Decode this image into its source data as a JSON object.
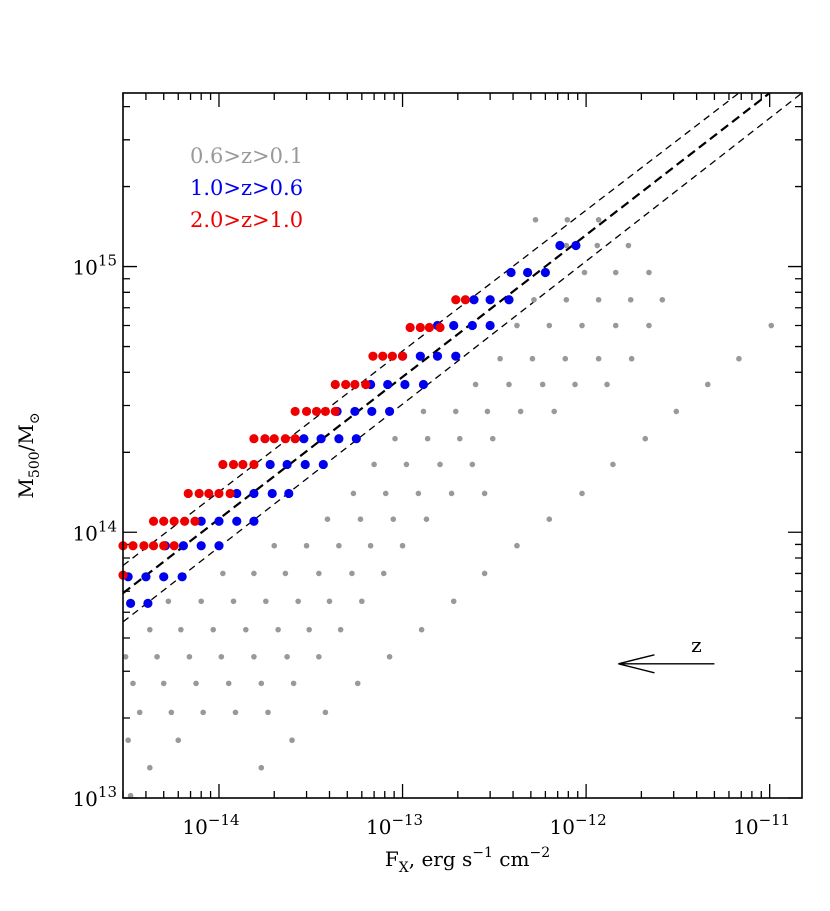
{
  "chart_data": {
    "type": "scatter",
    "x_scale": "log",
    "y_scale": "log",
    "xlim": [
      3e-15,
      1.5e-11
    ],
    "ylim": [
      10000000000000.0,
      4500000000000000.0
    ],
    "xlabel": {
      "base": "F",
      "sub": "X",
      "rest": ", erg s",
      "exp1": "−1",
      "mid": " cm",
      "exp2": "−2"
    },
    "ylabel": {
      "base1": "M",
      "sub1": "500",
      "slash": "/M",
      "sub2": "⊙"
    },
    "x_ticks": [
      {
        "value": 1e-14,
        "base": "10",
        "exp": "−14"
      },
      {
        "value": 1e-13,
        "base": "10",
        "exp": "−13"
      },
      {
        "value": 1e-12,
        "base": "10",
        "exp": "−12"
      },
      {
        "value": 1e-11,
        "base": "10",
        "exp": "−11"
      }
    ],
    "y_ticks": [
      {
        "value": 10000000000000.0,
        "base": "10",
        "exp": "13"
      },
      {
        "value": 100000000000000.0,
        "base": "10",
        "exp": "14"
      },
      {
        "value": 1000000000000000.0,
        "base": "10",
        "exp": "15"
      }
    ],
    "legend": [
      {
        "label": "0.6>z>0.1",
        "color": "#999999"
      },
      {
        "label": "1.0>z>0.6",
        "color": "#0000ee"
      },
      {
        "label": "2.0>z>1.0",
        "color": "#ee0000"
      }
    ],
    "legend_placement": "top-left",
    "annotation": {
      "label": "z",
      "arrow_from_x": 5e-12,
      "arrow_to_x": 1.5e-12,
      "arrow_y": 32000000000000.0
    },
    "lines": [
      {
        "style": "dashed",
        "points": [
          [
            3e-15,
            75000000000000.0
          ],
          [
            6.8e-12,
            4500000000000000.0
          ]
        ]
      },
      {
        "style": "dashed-bold",
        "points": [
          [
            3e-15,
            59000000000000.0
          ],
          [
            1e-11,
            4500000000000000.0
          ]
        ]
      },
      {
        "style": "dashed",
        "points": [
          [
            3e-15,
            46000000000000.0
          ],
          [
            1.5e-11,
            4500000000000000.0
          ]
        ]
      }
    ],
    "series": [
      {
        "name": "0.6>z>0.1",
        "color": "#999999",
        "marker_size": "small",
        "points": [
          [
            1.17e-12,
            1500000000000000.0
          ],
          [
            7.9e-13,
            1500000000000000.0
          ],
          [
            5.3e-13,
            1500000000000000.0
          ],
          [
            1.7e-12,
            1200000000000000.0
          ],
          [
            1.15e-12,
            1200000000000000.0
          ],
          [
            7.8e-13,
            1200000000000000.0
          ],
          [
            2.2e-12,
            950000000000000.0
          ],
          [
            1.45e-12,
            950000000000000.0
          ],
          [
            9.8e-13,
            950000000000000.0
          ],
          [
            2.6e-12,
            750000000000000.0
          ],
          [
            1.75e-12,
            750000000000000.0
          ],
          [
            1.17e-12,
            750000000000000.0
          ],
          [
            7.8e-13,
            750000000000000.0
          ],
          [
            5.2e-13,
            750000000000000.0
          ],
          [
            1.02e-11,
            600000000000000.0
          ],
          [
            2.2e-12,
            600000000000000.0
          ],
          [
            1.45e-12,
            600000000000000.0
          ],
          [
            9.5e-13,
            600000000000000.0
          ],
          [
            6.3e-13,
            600000000000000.0
          ],
          [
            4.2e-13,
            600000000000000.0
          ],
          [
            6.8e-12,
            450000000000000.0
          ],
          [
            1.77e-12,
            450000000000000.0
          ],
          [
            1.17e-12,
            450000000000000.0
          ],
          [
            7.7e-13,
            450000000000000.0
          ],
          [
            5.1e-13,
            450000000000000.0
          ],
          [
            3.4e-13,
            450000000000000.0
          ],
          [
            4.6e-12,
            360000000000000.0
          ],
          [
            1.3e-12,
            360000000000000.0
          ],
          [
            8.7e-13,
            360000000000000.0
          ],
          [
            5.8e-13,
            360000000000000.0
          ],
          [
            3.8e-13,
            360000000000000.0
          ],
          [
            2.5e-13,
            360000000000000.0
          ],
          [
            3.1e-12,
            285000000000000.0
          ],
          [
            6.7e-13,
            285000000000000.0
          ],
          [
            4.4e-13,
            285000000000000.0
          ],
          [
            2.9e-13,
            285000000000000.0
          ],
          [
            1.95e-13,
            285000000000000.0
          ],
          [
            1.3e-13,
            285000000000000.0
          ],
          [
            2.1e-12,
            225000000000000.0
          ],
          [
            3.1e-13,
            225000000000000.0
          ],
          [
            2.05e-13,
            225000000000000.0
          ],
          [
            1.37e-13,
            225000000000000.0
          ],
          [
            9.1e-14,
            225000000000000.0
          ],
          [
            1.4e-12,
            180000000000000.0
          ],
          [
            2.4e-13,
            180000000000000.0
          ],
          [
            1.6e-13,
            180000000000000.0
          ],
          [
            1.05e-13,
            180000000000000.0
          ],
          [
            7e-14,
            180000000000000.0
          ],
          [
            9.5e-13,
            140000000000000.0
          ],
          [
            2.8e-13,
            140000000000000.0
          ],
          [
            1.85e-13,
            140000000000000.0
          ],
          [
            1.22e-13,
            140000000000000.0
          ],
          [
            8.1e-14,
            140000000000000.0
          ],
          [
            5.4e-14,
            140000000000000.0
          ],
          [
            6.3e-13,
            112000000000000.0
          ],
          [
            1.35e-13,
            112000000000000.0
          ],
          [
            8.9e-14,
            112000000000000.0
          ],
          [
            5.9e-14,
            112000000000000.0
          ],
          [
            3.9e-14,
            112000000000000.0
          ],
          [
            4.2e-13,
            89000000000000.0
          ],
          [
            1e-13,
            89000000000000.0
          ],
          [
            6.7e-14,
            89000000000000.0
          ],
          [
            4.5e-14,
            89000000000000.0
          ],
          [
            3e-14,
            89000000000000.0
          ],
          [
            2e-14,
            89000000000000.0
          ],
          [
            2.8e-13,
            70000000000000.0
          ],
          [
            7.9e-14,
            70000000000000.0
          ],
          [
            5.3e-14,
            70000000000000.0
          ],
          [
            3.5e-14,
            70000000000000.0
          ],
          [
            2.3e-14,
            70000000000000.0
          ],
          [
            1.55e-14,
            70000000000000.0
          ],
          [
            1.05e-14,
            70000000000000.0
          ],
          [
            1.9e-13,
            55000000000000.0
          ],
          [
            6e-14,
            55000000000000.0
          ],
          [
            4e-14,
            55000000000000.0
          ],
          [
            2.7e-14,
            55000000000000.0
          ],
          [
            1.8e-14,
            55000000000000.0
          ],
          [
            1.2e-14,
            55000000000000.0
          ],
          [
            8e-15,
            55000000000000.0
          ],
          [
            5.3e-15,
            55000000000000.0
          ],
          [
            1.27e-13,
            43000000000000.0
          ],
          [
            4.6e-14,
            43000000000000.0
          ],
          [
            3.1e-14,
            43000000000000.0
          ],
          [
            2.1e-14,
            43000000000000.0
          ],
          [
            1.4e-14,
            43000000000000.0
          ],
          [
            9.3e-15,
            43000000000000.0
          ],
          [
            6.2e-15,
            43000000000000.0
          ],
          [
            4.2e-15,
            43000000000000.0
          ],
          [
            8.5e-14,
            34000000000000.0
          ],
          [
            3.5e-14,
            34000000000000.0
          ],
          [
            2.35e-14,
            34000000000000.0
          ],
          [
            1.55e-14,
            34000000000000.0
          ],
          [
            1.03e-14,
            34000000000000.0
          ],
          [
            6.9e-15,
            34000000000000.0
          ],
          [
            4.6e-15,
            34000000000000.0
          ],
          [
            3.1e-15,
            34000000000000.0
          ],
          [
            5.7e-14,
            27000000000000.0
          ],
          [
            2.55e-14,
            27000000000000.0
          ],
          [
            1.7e-14,
            27000000000000.0
          ],
          [
            1.13e-14,
            27000000000000.0
          ],
          [
            7.5e-15,
            27000000000000.0
          ],
          [
            5e-15,
            27000000000000.0
          ],
          [
            3.4e-15,
            27000000000000.0
          ],
          [
            3.8e-14,
            21000000000000.0
          ],
          [
            1.85e-14,
            21000000000000.0
          ],
          [
            1.23e-14,
            21000000000000.0
          ],
          [
            8.2e-15,
            21000000000000.0
          ],
          [
            5.5e-15,
            21000000000000.0
          ],
          [
            3.7e-15,
            21000000000000.0
          ],
          [
            2.5e-14,
            16500000000000.0
          ],
          [
            6e-15,
            16500000000000.0
          ],
          [
            3.2e-15,
            16500000000000.0
          ],
          [
            1.7e-14,
            13000000000000.0
          ],
          [
            4.2e-15,
            13000000000000.0
          ],
          [
            3.3e-15,
            10200000000000.0
          ]
        ]
      },
      {
        "name": "1.0>z>0.6",
        "color": "#0000ee",
        "marker_size": "large",
        "points": [
          [
            7.2e-13,
            1200000000000000.0
          ],
          [
            8.8e-13,
            1200000000000000.0
          ],
          [
            3.9e-13,
            950000000000000.0
          ],
          [
            4.8e-13,
            950000000000000.0
          ],
          [
            6e-13,
            950000000000000.0
          ],
          [
            2.45e-13,
            750000000000000.0
          ],
          [
            3e-13,
            750000000000000.0
          ],
          [
            3.8e-13,
            750000000000000.0
          ],
          [
            1.55e-13,
            600000000000000.0
          ],
          [
            1.9e-13,
            600000000000000.0
          ],
          [
            2.4e-13,
            600000000000000.0
          ],
          [
            3e-13,
            600000000000000.0
          ],
          [
            1e-13,
            460000000000000.0
          ],
          [
            1.25e-13,
            460000000000000.0
          ],
          [
            1.55e-13,
            460000000000000.0
          ],
          [
            1.95e-13,
            460000000000000.0
          ],
          [
            6.7e-14,
            360000000000000.0
          ],
          [
            8.3e-14,
            360000000000000.0
          ],
          [
            1.03e-13,
            360000000000000.0
          ],
          [
            1.3e-13,
            360000000000000.0
          ],
          [
            4.4e-14,
            285000000000000.0
          ],
          [
            5.5e-14,
            285000000000000.0
          ],
          [
            6.8e-14,
            285000000000000.0
          ],
          [
            8.5e-14,
            285000000000000.0
          ],
          [
            2.9e-14,
            225000000000000.0
          ],
          [
            3.6e-14,
            225000000000000.0
          ],
          [
            4.5e-14,
            225000000000000.0
          ],
          [
            5.6e-14,
            225000000000000.0
          ],
          [
            1.9e-14,
            180000000000000.0
          ],
          [
            2.35e-14,
            180000000000000.0
          ],
          [
            2.95e-14,
            180000000000000.0
          ],
          [
            3.7e-14,
            180000000000000.0
          ],
          [
            1.25e-14,
            140000000000000.0
          ],
          [
            1.55e-14,
            140000000000000.0
          ],
          [
            1.95e-14,
            140000000000000.0
          ],
          [
            2.4e-14,
            140000000000000.0
          ],
          [
            8e-15,
            110000000000000.0
          ],
          [
            1e-14,
            110000000000000.0
          ],
          [
            1.25e-14,
            110000000000000.0
          ],
          [
            1.55e-14,
            110000000000000.0
          ],
          [
            5.1e-15,
            89000000000000.0
          ],
          [
            6.4e-15,
            89000000000000.0
          ],
          [
            8e-15,
            89000000000000.0
          ],
          [
            1e-14,
            89000000000000.0
          ],
          [
            3.2e-15,
            68000000000000.0
          ],
          [
            4e-15,
            68000000000000.0
          ],
          [
            5e-15,
            68000000000000.0
          ],
          [
            6.3e-15,
            68000000000000.0
          ],
          [
            3.3e-15,
            54000000000000.0
          ],
          [
            4.1e-15,
            54000000000000.0
          ]
        ]
      },
      {
        "name": "2.0>z>1.0",
        "color": "#ee0000",
        "marker_size": "large",
        "points": [
          [
            1.95e-13,
            750000000000000.0
          ],
          [
            2.2e-13,
            750000000000000.0
          ],
          [
            1.1e-13,
            590000000000000.0
          ],
          [
            1.25e-13,
            590000000000000.0
          ],
          [
            1.4e-13,
            590000000000000.0
          ],
          [
            1.6e-13,
            590000000000000.0
          ],
          [
            6.9e-14,
            460000000000000.0
          ],
          [
            7.8e-14,
            460000000000000.0
          ],
          [
            8.8e-14,
            460000000000000.0
          ],
          [
            1e-13,
            460000000000000.0
          ],
          [
            4.3e-14,
            360000000000000.0
          ],
          [
            4.9e-14,
            360000000000000.0
          ],
          [
            5.5e-14,
            360000000000000.0
          ],
          [
            6.3e-14,
            360000000000000.0
          ],
          [
            2.6e-14,
            285000000000000.0
          ],
          [
            3e-14,
            285000000000000.0
          ],
          [
            3.4e-14,
            285000000000000.0
          ],
          [
            3.8e-14,
            285000000000000.0
          ],
          [
            4.3e-14,
            285000000000000.0
          ],
          [
            1.55e-14,
            225000000000000.0
          ],
          [
            1.78e-14,
            225000000000000.0
          ],
          [
            2e-14,
            225000000000000.0
          ],
          [
            2.3e-14,
            225000000000000.0
          ],
          [
            2.6e-14,
            225000000000000.0
          ],
          [
            1.05e-14,
            180000000000000.0
          ],
          [
            1.2e-14,
            180000000000000.0
          ],
          [
            1.35e-14,
            180000000000000.0
          ],
          [
            1.55e-14,
            180000000000000.0
          ],
          [
            6.8e-15,
            140000000000000.0
          ],
          [
            7.8e-15,
            140000000000000.0
          ],
          [
            8.8e-15,
            140000000000000.0
          ],
          [
            1e-14,
            140000000000000.0
          ],
          [
            1.15e-14,
            140000000000000.0
          ],
          [
            4.4e-15,
            110000000000000.0
          ],
          [
            5e-15,
            110000000000000.0
          ],
          [
            5.7e-15,
            110000000000000.0
          ],
          [
            6.5e-15,
            110000000000000.0
          ],
          [
            7.4e-15,
            110000000000000.0
          ],
          [
            3e-15,
            89000000000000.0
          ],
          [
            3.4e-15,
            89000000000000.0
          ],
          [
            3.9e-15,
            89000000000000.0
          ],
          [
            4.4e-15,
            89000000000000.0
          ],
          [
            5e-15,
            89000000000000.0
          ],
          [
            5.7e-15,
            89000000000000.0
          ],
          [
            3e-15,
            69000000000000.0
          ]
        ]
      }
    ]
  }
}
